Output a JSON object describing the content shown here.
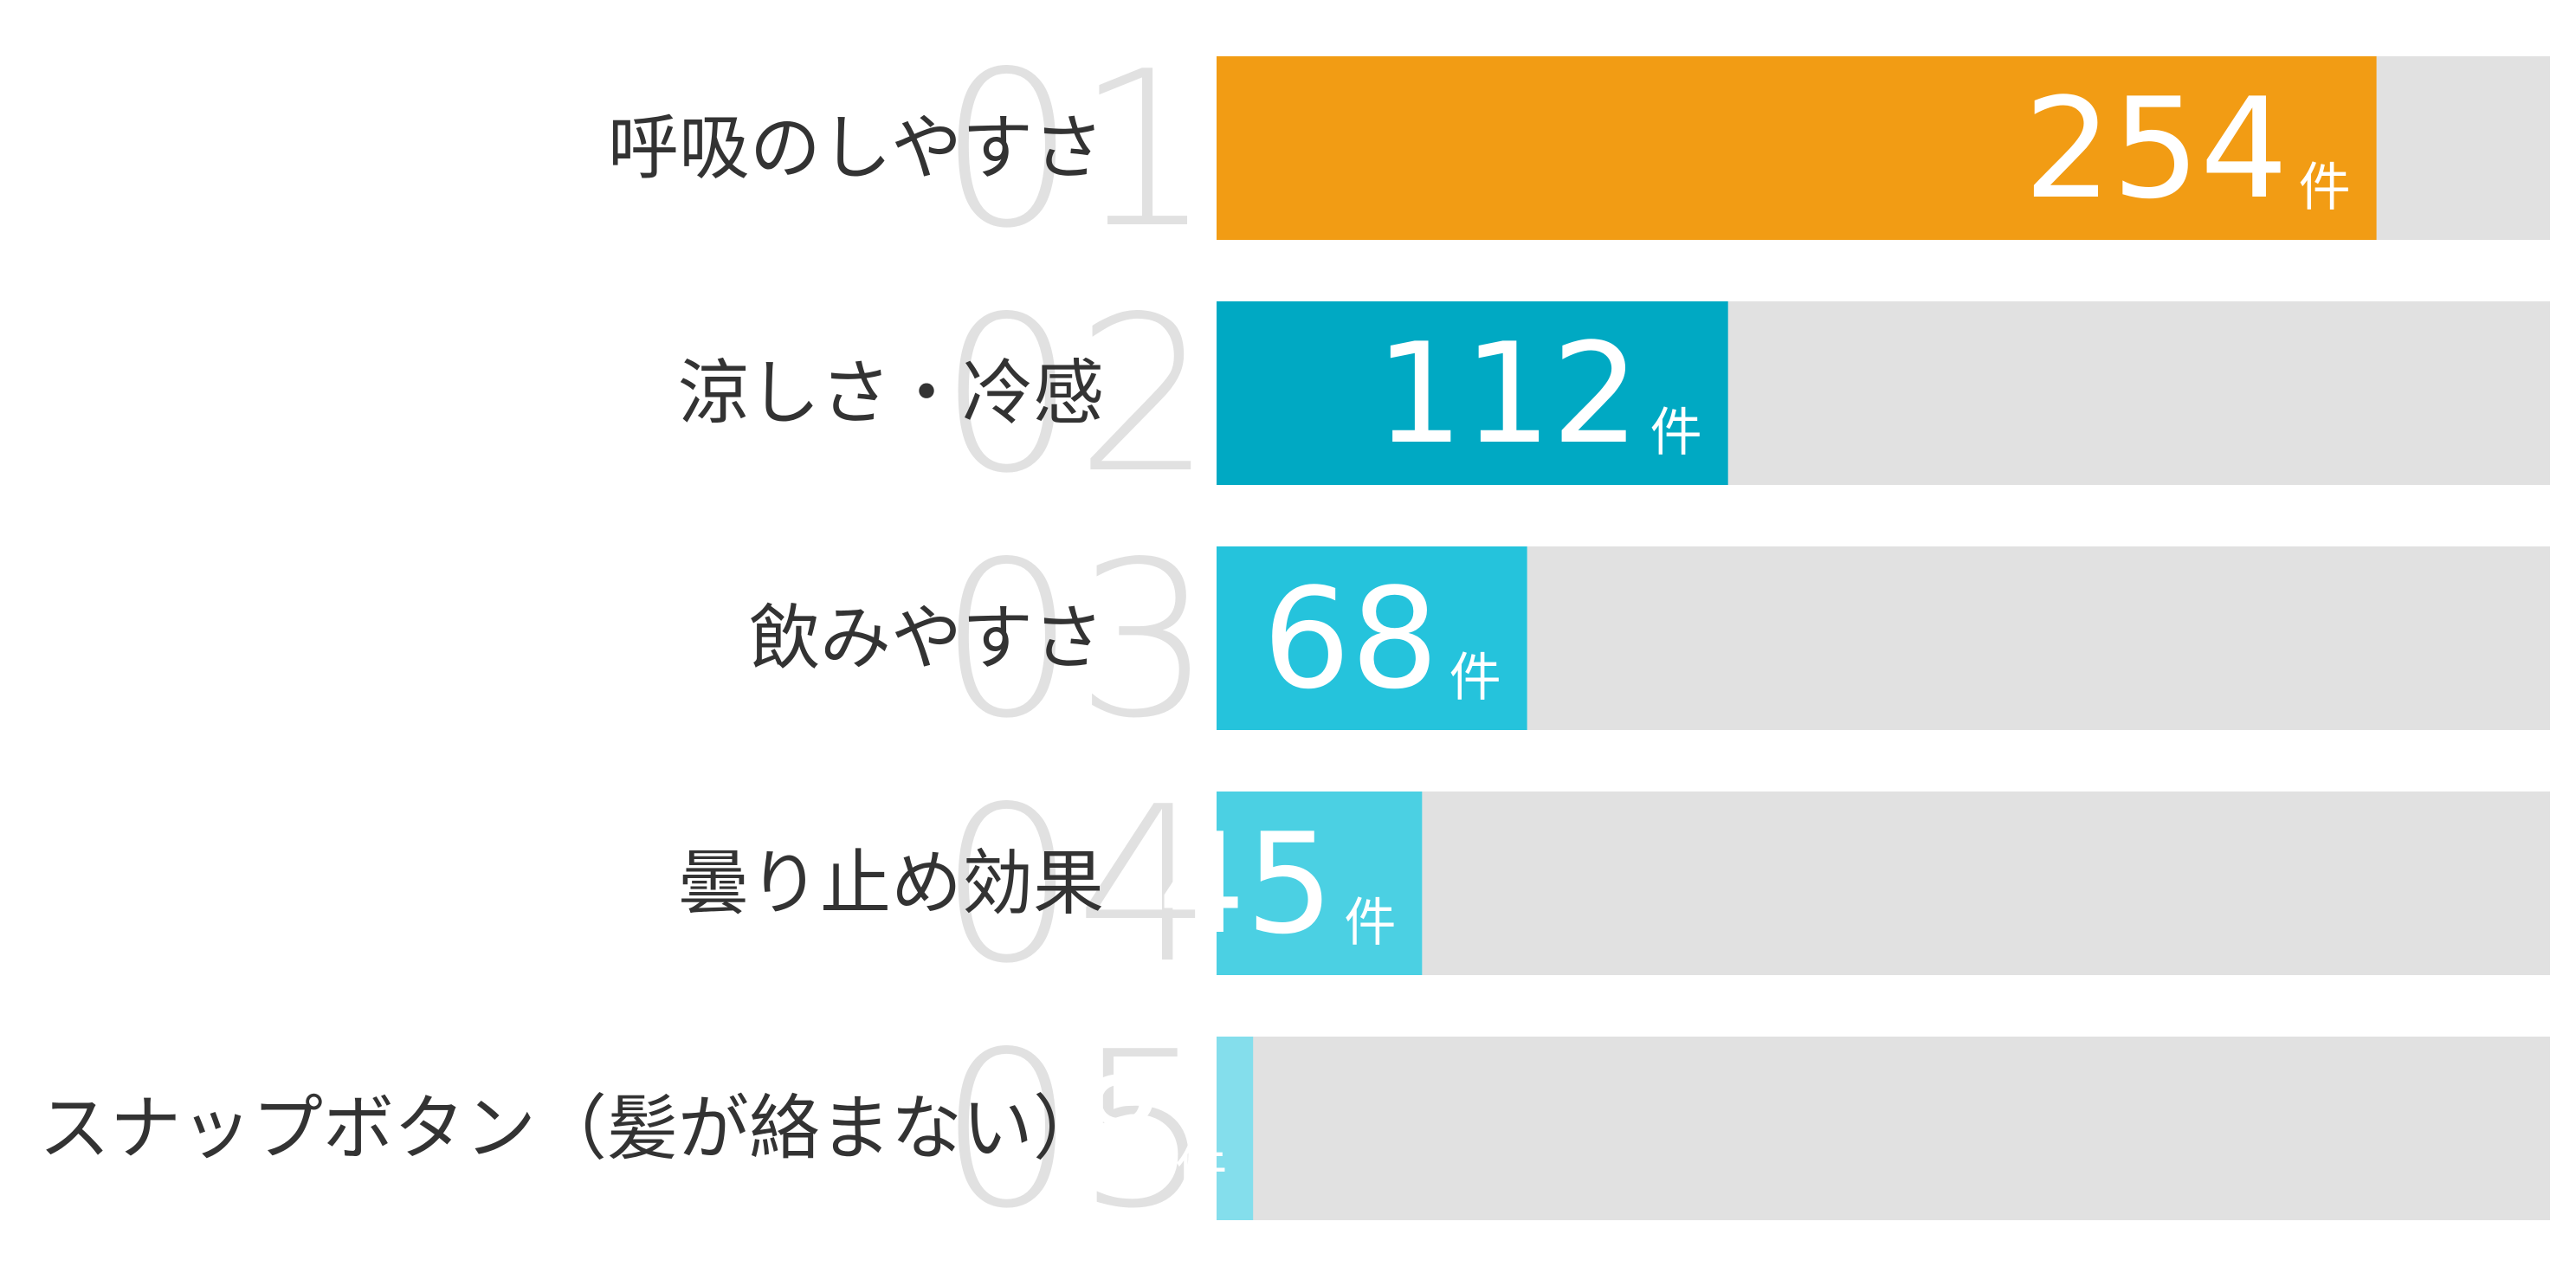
{
  "chart_data": {
    "type": "bar",
    "orientation": "horizontal",
    "unit": "件",
    "xlim": [
      0,
      292
    ],
    "grid": false,
    "legend": "none",
    "items": [
      {
        "rank": "01",
        "label": "呼吸のしやすさ",
        "value": 254,
        "color": "#f29c14"
      },
      {
        "rank": "02",
        "label": "涼しさ・冷感",
        "value": 112,
        "color": "#00a9c3"
      },
      {
        "rank": "03",
        "label": "飲みやすさ",
        "value": 68,
        "color": "#25c3dc"
      },
      {
        "rank": "04",
        "label": "曇り止め効果",
        "value": 45,
        "color": "#4bd0e3"
      },
      {
        "rank": "05",
        "label": "スナップボタン（髪が絡まない）",
        "value": 8,
        "color": "#84deec"
      }
    ],
    "track_color": "#e1e1e1"
  }
}
